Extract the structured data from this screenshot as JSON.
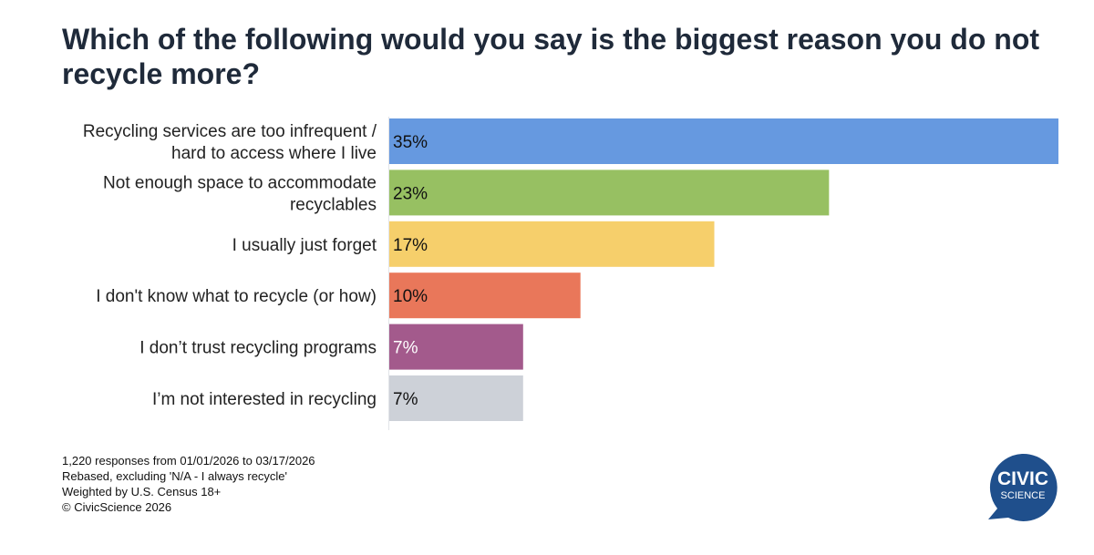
{
  "title": "Which of the following would you say is the biggest reason you do not recycle more?",
  "chart_data": {
    "type": "bar",
    "orientation": "horizontal",
    "title": "Which of the following would you say is the biggest reason you do not recycle more?",
    "categories": [
      [
        "Recycling services are too infrequent /",
        "hard to access where I live"
      ],
      [
        "Not enough space to accommodate",
        "recyclables"
      ],
      [
        "I usually just forget"
      ],
      [
        "I don't know what to recycle (or how)"
      ],
      [
        "I don’t trust recycling programs"
      ],
      [
        "I’m not interested in recycling"
      ]
    ],
    "values": [
      35,
      23,
      17,
      10,
      7,
      7
    ],
    "value_labels": [
      "35%",
      "23%",
      "17%",
      "10%",
      "7%",
      "7%"
    ],
    "colors": [
      "#6699e0",
      "#97c062",
      "#f6cf6b",
      "#e9775a",
      "#a35a8c",
      "#cdd1d8"
    ],
    "label_colors": [
      "#111111",
      "#111111",
      "#111111",
      "#111111",
      "#ffffff",
      "#111111"
    ],
    "xlim": [
      0,
      35
    ],
    "unit": "%",
    "xlabel": "",
    "ylabel": "",
    "grid": false
  },
  "footnote": {
    "responses": "1,220 responses from 01/01/2026 to 03/17/2026",
    "rebased": "Rebased, excluding 'N/A - I always recycle'",
    "weighted": "Weighted by U.S. Census 18+",
    "copyright": "© CivicScience 2026"
  },
  "logo": {
    "line1": "CIVIC",
    "line2": "SCIENCE",
    "color": "#1f4f8c"
  }
}
